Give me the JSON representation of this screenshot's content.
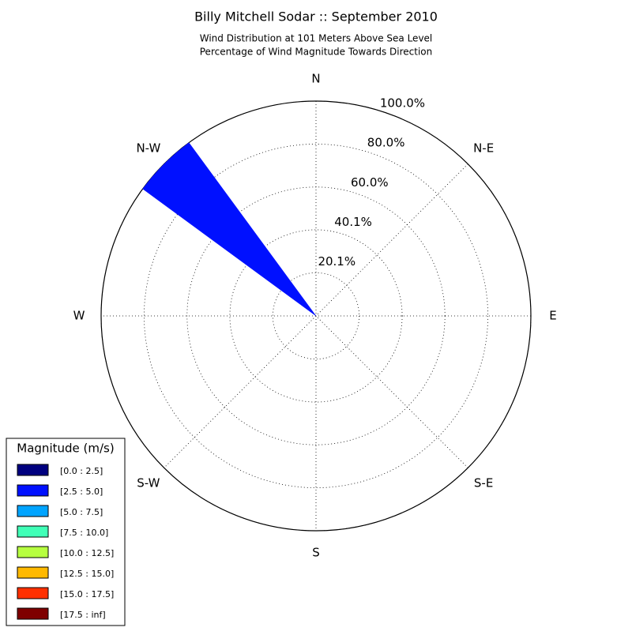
{
  "chart_data": {
    "type": "windrose",
    "title": "Billy Mitchell Sodar :: September 2010",
    "subtitle": [
      "Wind Distribution at 101 Meters Above Sea Level",
      "Percentage of Wind Magnitude Towards Direction"
    ],
    "categories": [
      "N",
      "N-E",
      "E",
      "S-E",
      "S",
      "S-W",
      "W",
      "N-W"
    ],
    "rlim": [
      0,
      100
    ],
    "rticks": [
      {
        "value": 20.1,
        "label": "20.1%"
      },
      {
        "value": 40.1,
        "label": "40.1%"
      },
      {
        "value": 60.0,
        "label": "60.0%"
      },
      {
        "value": 80.0,
        "label": "80.0%"
      },
      {
        "value": 100.0,
        "label": "100.0%"
      }
    ],
    "grid": true,
    "legend_title": "Magnitude (m/s)",
    "legend_position": "lower left",
    "series": [
      {
        "name": "[0.0 : 2.5]",
        "color": "#00007f",
        "values": [
          0,
          0,
          0,
          0,
          0,
          0,
          0,
          0
        ]
      },
      {
        "name": "[2.5 : 5.0]",
        "color": "#0010ff",
        "values": [
          0,
          0,
          0,
          0,
          0,
          0,
          0,
          100
        ]
      },
      {
        "name": "[5.0 : 7.5]",
        "color": "#00a4ff",
        "values": [
          0,
          0,
          0,
          0,
          0,
          0,
          0,
          0
        ]
      },
      {
        "name": "[7.5 : 10.0]",
        "color": "#40ffb7",
        "values": [
          0,
          0,
          0,
          0,
          0,
          0,
          0,
          0
        ]
      },
      {
        "name": "[10.0 : 12.5]",
        "color": "#b7ff40",
        "values": [
          0,
          0,
          0,
          0,
          0,
          0,
          0,
          0
        ]
      },
      {
        "name": "[12.5 : 15.0]",
        "color": "#ffb900",
        "values": [
          0,
          0,
          0,
          0,
          0,
          0,
          0,
          0
        ]
      },
      {
        "name": "[15.0 : 17.5]",
        "color": "#ff3000",
        "values": [
          0,
          0,
          0,
          0,
          0,
          0,
          0,
          0
        ]
      },
      {
        "name": "[17.5 : inf]",
        "color": "#7f0000",
        "values": [
          0,
          0,
          0,
          0,
          0,
          0,
          0,
          0
        ]
      }
    ]
  }
}
